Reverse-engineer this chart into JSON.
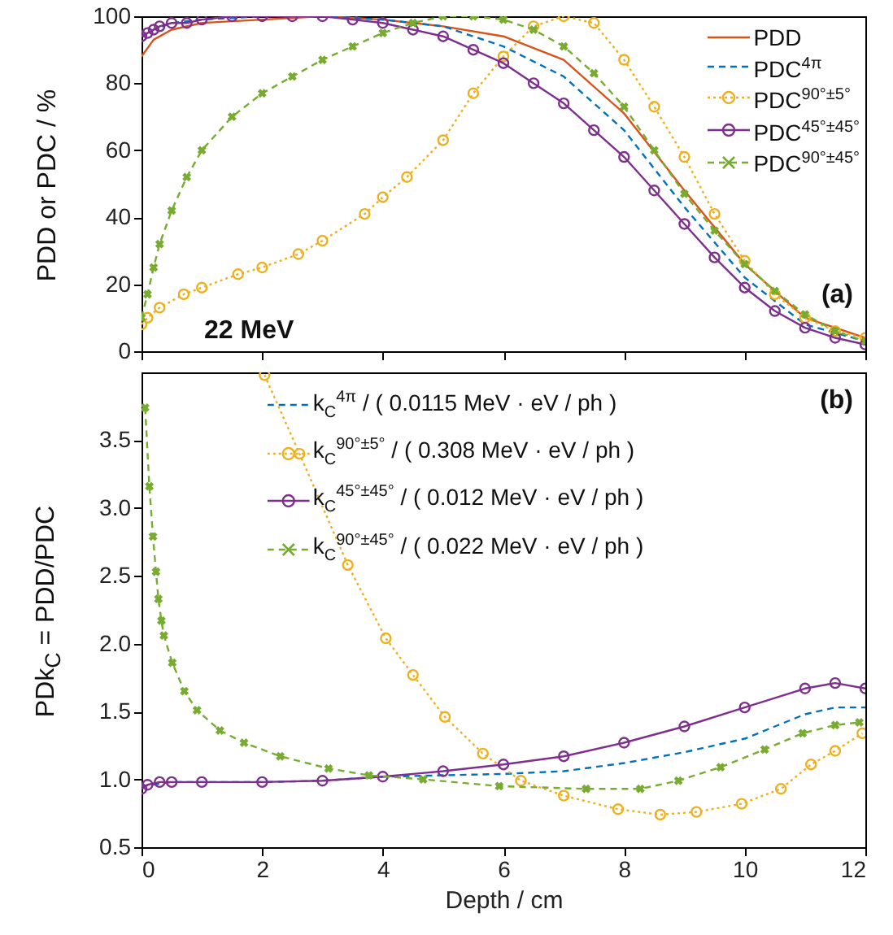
{
  "chart_data": [
    {
      "type": "line",
      "ylabel": "PDD or PDC / %",
      "xlim": [
        0,
        12
      ],
      "xticks": [
        0,
        2,
        4,
        6,
        8,
        10,
        12
      ],
      "ylim": [
        0,
        100
      ],
      "yticks": [
        0,
        20,
        40,
        60,
        80,
        100
      ],
      "tick_labels": "y",
      "legend": "top right",
      "annotations": [
        "22 MeV",
        "(a)"
      ],
      "series": [
        {
          "name": "PDD",
          "color": "#d95319",
          "line_style": "solid",
          "marker": "none",
          "x": [
            0,
            0.2,
            0.5,
            1,
            2,
            3,
            4,
            5,
            6,
            7,
            8,
            9,
            10,
            11,
            12
          ],
          "values": [
            88,
            93,
            96,
            98,
            99,
            100,
            99,
            97,
            94,
            87,
            71,
            48,
            26,
            10,
            4
          ]
        },
        {
          "name": "PDC$^{4π}$",
          "color": "#0072bd",
          "line_style": "dashed",
          "marker": "none",
          "x": [
            0,
            0.2,
            0.5,
            1,
            2,
            3,
            4,
            5,
            6,
            7,
            8,
            9,
            10,
            11,
            12
          ],
          "values": [
            94,
            96,
            98,
            99,
            100,
            100,
            99,
            97,
            91,
            82,
            66,
            43,
            22,
            8,
            3
          ]
        },
        {
          "name": "PDC$^{90°±5°}$",
          "color": "#edb120",
          "line_style": "dotted",
          "marker": "circle",
          "x": [
            0,
            0.1,
            0.3,
            0.7,
            1,
            1.6,
            2,
            2.6,
            3,
            3.7,
            4,
            4.4,
            5,
            5.5,
            6,
            6.5,
            7,
            7.5,
            8,
            8.5,
            9,
            9.5,
            10,
            10.5,
            11,
            11.5,
            12
          ],
          "values": [
            8,
            10,
            13,
            17,
            19,
            23,
            25,
            29,
            33,
            41,
            46,
            52,
            63,
            77,
            88,
            97,
            100,
            98,
            87,
            73,
            58,
            41,
            27,
            17,
            10,
            6,
            4
          ]
        },
        {
          "name": "PDC$^{45°±45°}$",
          "color": "#7e2f8e",
          "line_style": "solid",
          "marker": "circle",
          "x": [
            0,
            0.1,
            0.2,
            0.3,
            0.5,
            0.75,
            1,
            1.5,
            2,
            2.5,
            3,
            3.5,
            4,
            4.5,
            5,
            5.5,
            6,
            6.5,
            7,
            7.5,
            8,
            8.5,
            9,
            9.5,
            10,
            10.5,
            11,
            11.5,
            12
          ],
          "values": [
            94,
            95,
            96,
            97,
            98,
            98,
            99,
            100,
            100,
            100,
            100,
            99,
            98,
            96,
            94,
            90,
            86,
            80,
            74,
            66,
            58,
            48,
            38,
            28,
            19,
            12,
            7,
            4,
            2
          ]
        },
        {
          "name": "PDC$^{90°±45°}$",
          "color": "#77ac30",
          "line_style": "dashed",
          "marker": "cross",
          "x": [
            0,
            0.1,
            0.2,
            0.3,
            0.5,
            0.75,
            1,
            1.5,
            2,
            2.5,
            3,
            3.5,
            4,
            4.5,
            5,
            5.5,
            6,
            6.5,
            7,
            7.5,
            8,
            8.5,
            9,
            9.5,
            10,
            10.5,
            11,
            11.5,
            12
          ],
          "values": [
            10,
            17,
            25,
            32,
            42,
            52,
            60,
            70,
            77,
            82,
            87,
            91,
            95,
            98,
            100,
            100,
            99,
            96,
            91,
            83,
            73,
            60,
            47,
            36,
            26,
            18,
            11,
            6,
            3
          ]
        }
      ]
    },
    {
      "type": "line",
      "xlabel": "Depth / cm",
      "ylabel": "PDk$_{C}$ = PDD/PDC",
      "xlim": [
        0,
        12
      ],
      "xticks": [
        0,
        2,
        4,
        6,
        8,
        10,
        12
      ],
      "ylim": [
        0.5,
        4
      ],
      "yticks": [
        0.5,
        {
          "value": 1,
          "label": "1.0"
        },
        1.5,
        {
          "value": 2,
          "label": "2.0"
        },
        2.5,
        {
          "value": 3,
          "label": "3.0"
        },
        3.5
      ],
      "legend": "top",
      "annotations": [
        "(b)"
      ],
      "series": [
        {
          "name": "k$_{C}$$^{4π}$ / ( 0.0115 MeV · eV / ph )",
          "color": "#0072bd",
          "line_style": "dashed",
          "marker": "none",
          "x": [
            0,
            0.5,
            1,
            2,
            3,
            4,
            5,
            6,
            7,
            8,
            9,
            10,
            11,
            11.5,
            12
          ],
          "values": [
            0.95,
            0.98,
            0.98,
            0.98,
            0.99,
            1.02,
            1.03,
            1.04,
            1.06,
            1.12,
            1.2,
            1.3,
            1.48,
            1.53,
            1.53
          ]
        },
        {
          "name": "k$_{C}$$^{90°±5°}$ / ( 0.308 MeV · eV / ph )",
          "color": "#edb120",
          "line_style": "dotted",
          "marker": "circle",
          "x": [
            2.04,
            2.62,
            3.42,
            4.05,
            4.5,
            5.03,
            5.66,
            6.29,
            7,
            7.9,
            8.6,
            9.2,
            9.95,
            10.6,
            11.1,
            11.5,
            11.95
          ],
          "values": [
            3.98,
            3.4,
            2.58,
            2.04,
            1.77,
            1.46,
            1.19,
            0.99,
            0.88,
            0.78,
            0.74,
            0.76,
            0.82,
            0.93,
            1.11,
            1.21,
            1.34
          ]
        },
        {
          "name": "k$_{C}$$^{45°±45°}$ / ( 0.012 MeV · eV / ph )",
          "color": "#7e2f8e",
          "line_style": "solid",
          "marker": "circle",
          "x": [
            0,
            0.1,
            0.3,
            0.5,
            1,
            2,
            3,
            4,
            5,
            6,
            7,
            8,
            9,
            10,
            11,
            11.5,
            12
          ],
          "values": [
            0.93,
            0.96,
            0.98,
            0.98,
            0.98,
            0.98,
            0.99,
            1.02,
            1.06,
            1.11,
            1.17,
            1.27,
            1.39,
            1.53,
            1.67,
            1.71,
            1.67
          ]
        },
        {
          "name": "k$_{C}$$^{90°±45°}$ / ( 0.022 MeV · eV / ph )",
          "color": "#77ac30",
          "line_style": "dashed",
          "marker": "cross",
          "x": [
            0.06,
            0.13,
            0.19,
            0.24,
            0.28,
            0.33,
            0.37,
            0.51,
            0.71,
            0.92,
            1.3,
            1.7,
            2.3,
            3.1,
            3.77,
            4.67,
            5.93,
            7.37,
            8.27,
            8.9,
            9.6,
            10.33,
            10.96,
            11.5,
            11.9
          ],
          "values": [
            3.74,
            3.16,
            2.79,
            2.53,
            2.33,
            2.17,
            2.06,
            1.86,
            1.65,
            1.51,
            1.36,
            1.27,
            1.17,
            1.08,
            1.03,
            1.0,
            0.95,
            0.93,
            0.93,
            0.99,
            1.09,
            1.22,
            1.34,
            1.4,
            1.42
          ]
        }
      ]
    }
  ]
}
